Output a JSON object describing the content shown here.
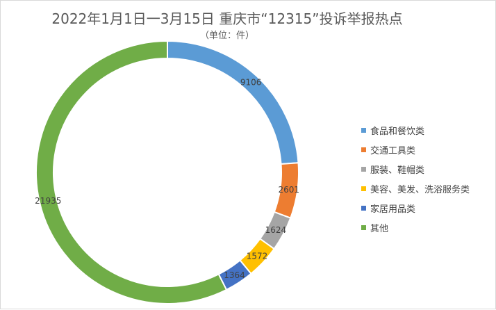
{
  "chart_data": {
    "type": "pie",
    "variant": "doughnut",
    "title": "2022年1月1日一3月15日 重庆市“12315”投诉举报热点",
    "subtitle": "（单位：件）",
    "legend_position": "right",
    "slices": [
      {
        "label": "食品和餐饮类",
        "value": 9106,
        "color": "#5B9BD5"
      },
      {
        "label": "交通工具类",
        "value": 2601,
        "color": "#ED7D31"
      },
      {
        "label": "服装、鞋帽类",
        "value": 1624,
        "color": "#A5A5A5"
      },
      {
        "label": "美容、美发、洗浴服务类",
        "value": 1572,
        "color": "#FFC000"
      },
      {
        "label": "家居用品类",
        "value": 1364,
        "color": "#4472C4"
      },
      {
        "label": "其他",
        "value": 21935,
        "color": "#70AD47"
      }
    ]
  }
}
